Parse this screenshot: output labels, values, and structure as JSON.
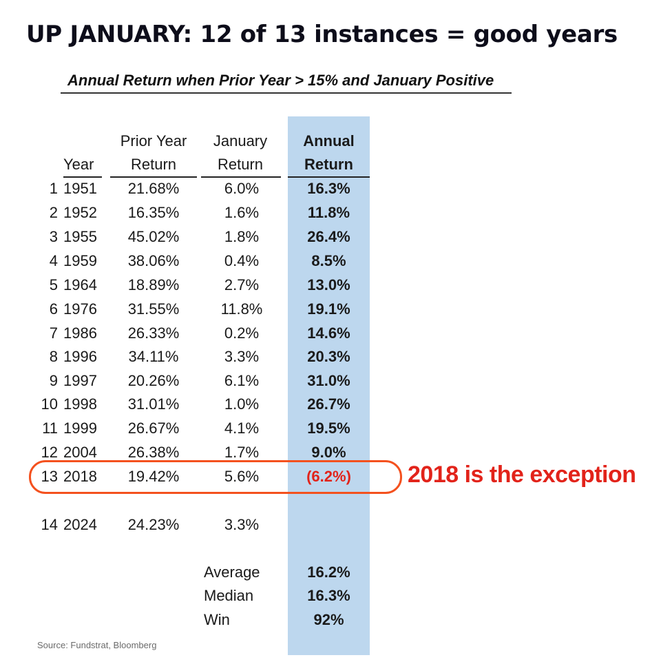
{
  "headline": "UP JANUARY: 12 of 13 instances = good years",
  "subtitle": "Annual Return when Prior Year > 15% and January Positive",
  "headers": {
    "year": "Year",
    "prior_year_1": "Prior Year",
    "prior_year_2": "Return",
    "january_1": "January",
    "january_2": "Return",
    "annual_1": "Annual",
    "annual_2": "Return"
  },
  "rows": [
    {
      "idx": "1",
      "year": "1951",
      "prior": "21.68%",
      "jan": "6.0%",
      "annual": "16.3%"
    },
    {
      "idx": "2",
      "year": "1952",
      "prior": "16.35%",
      "jan": "1.6%",
      "annual": "11.8%"
    },
    {
      "idx": "3",
      "year": "1955",
      "prior": "45.02%",
      "jan": "1.8%",
      "annual": "26.4%"
    },
    {
      "idx": "4",
      "year": "1959",
      "prior": "38.06%",
      "jan": "0.4%",
      "annual": "8.5%"
    },
    {
      "idx": "5",
      "year": "1964",
      "prior": "18.89%",
      "jan": "2.7%",
      "annual": "13.0%"
    },
    {
      "idx": "6",
      "year": "1976",
      "prior": "31.55%",
      "jan": "11.8%",
      "annual": "19.1%"
    },
    {
      "idx": "7",
      "year": "1986",
      "prior": "26.33%",
      "jan": "0.2%",
      "annual": "14.6%"
    },
    {
      "idx": "8",
      "year": "1996",
      "prior": "34.11%",
      "jan": "3.3%",
      "annual": "20.3%"
    },
    {
      "idx": "9",
      "year": "1997",
      "prior": "20.26%",
      "jan": "6.1%",
      "annual": "31.0%"
    },
    {
      "idx": "10",
      "year": "1998",
      "prior": "31.01%",
      "jan": "1.0%",
      "annual": "26.7%"
    },
    {
      "idx": "11",
      "year": "1999",
      "prior": "26.67%",
      "jan": "4.1%",
      "annual": "19.5%"
    },
    {
      "idx": "12",
      "year": "2004",
      "prior": "26.38%",
      "jan": "1.7%",
      "annual": "9.0%"
    },
    {
      "idx": "13",
      "year": "2018",
      "prior": "19.42%",
      "jan": "5.6%",
      "annual": "(6.2%)",
      "negative": true
    },
    {
      "idx": "14",
      "year": "2024",
      "prior": "24.23%",
      "jan": "3.3%",
      "annual": ""
    }
  ],
  "stats": [
    {
      "label": "Average",
      "value": "16.2%"
    },
    {
      "label": "Median",
      "value": "16.3%"
    },
    {
      "label": "Win",
      "value": "92%"
    }
  ],
  "callout": "2018 is the exception",
  "source": "Source: Fundstrat, Bloomberg",
  "colors": {
    "highlight_column": "#bdd7ee",
    "negative": "#e2231a",
    "oval": "#f4511e"
  }
}
